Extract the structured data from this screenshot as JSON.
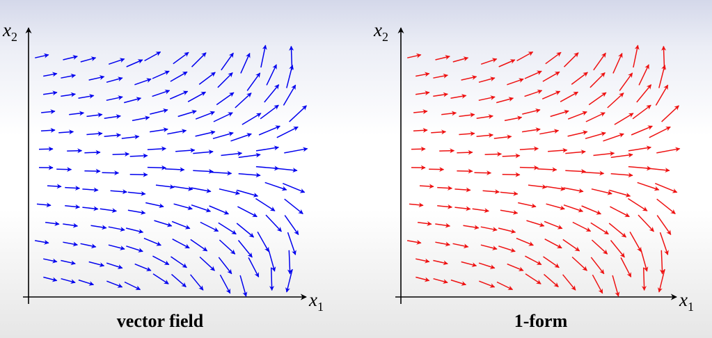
{
  "panels": [
    {
      "id": "vector-field",
      "caption": "vector field",
      "arrow_color": "#0000ee",
      "x_axis_label": "x",
      "x_axis_subscript": "1",
      "y_axis_label": "x",
      "y_axis_subscript": "2"
    },
    {
      "id": "one-form",
      "caption": "1-form",
      "arrow_color": "#ee1111",
      "x_axis_label": "x",
      "x_axis_subscript": "1",
      "y_axis_label": "x",
      "y_axis_subscript": "2"
    }
  ]
}
